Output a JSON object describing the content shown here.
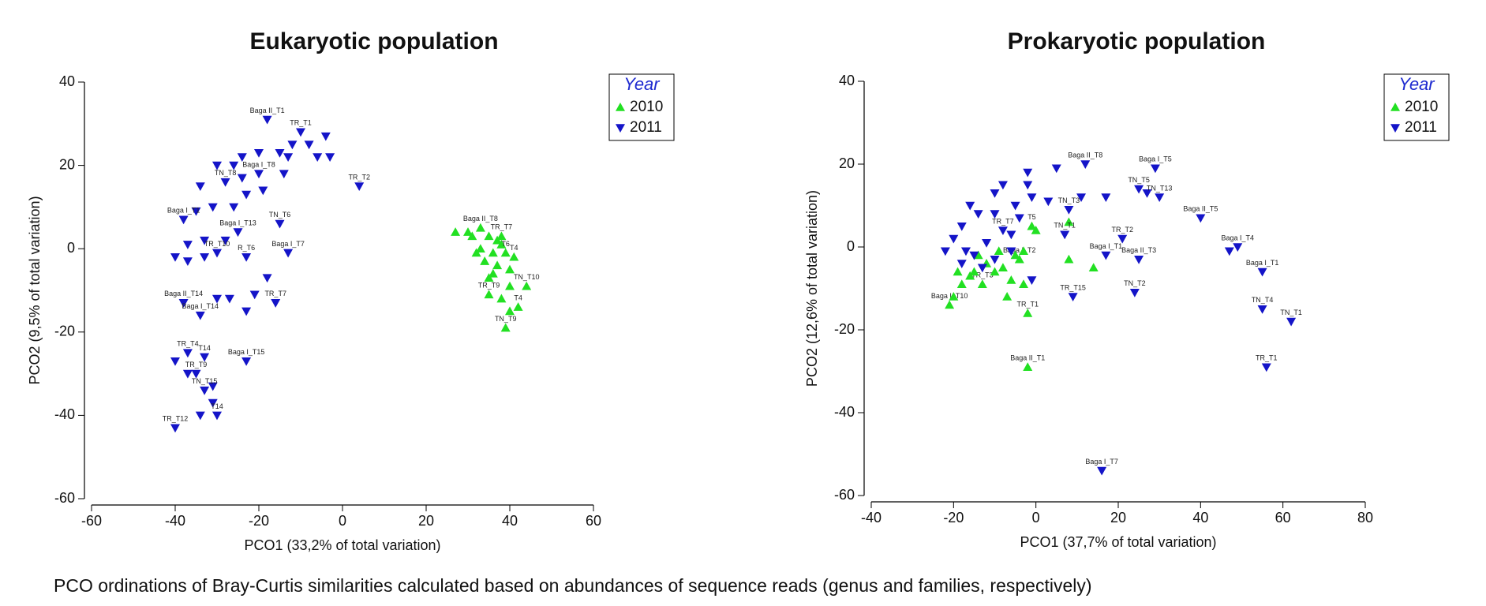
{
  "chart_data": [
    {
      "type": "scatter",
      "title": "Eukaryotic population",
      "x_label": "PCO1 (33,2% of total variation)",
      "y_label": "PCO2 (9,5% of total variation)",
      "legend_title": "Year",
      "xlim": [
        -60,
        60
      ],
      "xticks": [
        -60,
        -40,
        -20,
        0,
        20,
        40,
        60
      ],
      "ylim": [
        -60,
        40
      ],
      "yticks": [
        -60,
        -40,
        -20,
        0,
        20,
        40
      ],
      "series": [
        {
          "name": "2010",
          "color": "#22e022",
          "marker": "triangle-up",
          "x": [
            27,
            30,
            31,
            33,
            35,
            37,
            38,
            38,
            33,
            32,
            36,
            39,
            41,
            34,
            37,
            40,
            36,
            35,
            44,
            40,
            35,
            38,
            42,
            40,
            39
          ],
          "y": [
            4,
            4,
            3,
            5,
            3,
            2,
            1,
            3,
            0,
            -1,
            -1,
            -1,
            -2,
            -3,
            -4,
            -5,
            -6,
            -7,
            -9,
            -9,
            -11,
            -12,
            -14,
            -15,
            -19
          ],
          "labels": [
            null,
            null,
            null,
            "Baga II_T8",
            null,
            null,
            null,
            "TR_T7",
            null,
            null,
            null,
            "T6",
            "T4",
            null,
            null,
            null,
            null,
            null,
            "TN_T10",
            null,
            "TR_T9",
            null,
            "T4",
            null,
            "TN_T9"
          ]
        },
        {
          "name": "2011",
          "color": "#1414c8",
          "marker": "triangle-down",
          "x": [
            -18,
            -10,
            -4,
            -8,
            -12,
            -15,
            -20,
            -24,
            -26,
            -30,
            -13,
            -6,
            -3,
            -14,
            -20,
            -24,
            -28,
            -34,
            -19,
            -23,
            -26,
            -31,
            -35,
            -38,
            4,
            -15,
            -25,
            -28,
            -33,
            -37,
            -40,
            -37,
            -33,
            -30,
            -23,
            -13,
            -18,
            -21,
            -27,
            -30,
            -38,
            -34,
            -23,
            -16,
            -37,
            -33,
            -40,
            -23,
            -35,
            -37,
            -31,
            -33,
            -31,
            -34,
            -30,
            -40
          ],
          "y": [
            31,
            28,
            27,
            25,
            25,
            23,
            23,
            22,
            20,
            20,
            22,
            22,
            22,
            18,
            18,
            17,
            16,
            15,
            14,
            13,
            10,
            10,
            9,
            7,
            15,
            6,
            4,
            2,
            2,
            1,
            -2,
            -3,
            -2,
            -1,
            -2,
            -1,
            -7,
            -11,
            -12,
            -12,
            -13,
            -16,
            -15,
            -13,
            -25,
            -26,
            -27,
            -27,
            -30,
            -30,
            -33,
            -34,
            -37,
            -40,
            -40,
            -43
          ],
          "labels": [
            "Baga II_T1",
            "TR_T1",
            null,
            null,
            null,
            null,
            null,
            null,
            null,
            null,
            null,
            null,
            null,
            null,
            "Baga I_T8",
            null,
            "TN_T8",
            null,
            null,
            null,
            null,
            null,
            null,
            "Baga I_T1",
            "TR_T2",
            "TN_T6",
            "Baga I_T13",
            null,
            null,
            null,
            null,
            null,
            null,
            "TR_T10",
            "R_T6",
            "Baga I_T7",
            null,
            null,
            null,
            null,
            "Baga II_T14",
            "Baga I_T14",
            null,
            "TR_T7",
            "TR_T4",
            "T14",
            null,
            "Baga I_T15",
            "TR_T9",
            null,
            null,
            "TN_T15",
            null,
            null,
            "T14",
            "TR_T12"
          ]
        }
      ]
    },
    {
      "type": "scatter",
      "title": "Prokaryotic population",
      "x_label": "PCO1 (37,7% of total variation)",
      "y_label": "PCO2 (12,6% of total variation)",
      "legend_title": "Year",
      "xlim": [
        -40,
        80
      ],
      "xticks": [
        -40,
        -20,
        0,
        20,
        40,
        60,
        80
      ],
      "ylim": [
        -60,
        40
      ],
      "yticks": [
        -60,
        -40,
        -20,
        0,
        20,
        40
      ],
      "series": [
        {
          "name": "2010",
          "color": "#22e022",
          "marker": "triangle-up",
          "x": [
            -21,
            -20,
            -18,
            -16,
            -13,
            -10,
            -7,
            -6,
            -4,
            -3,
            -2,
            -2,
            8,
            14,
            8,
            0,
            -1,
            -8,
            -12,
            -15,
            -5,
            -9,
            -14,
            -19,
            -3
          ],
          "y": [
            -14,
            -12,
            -9,
            -7,
            -9,
            -6,
            -12,
            -8,
            -3,
            -1,
            -16,
            -29,
            -3,
            -5,
            6,
            4,
            5,
            -5,
            -4,
            -6,
            -2,
            -1,
            -2,
            -6,
            -9
          ],
          "labels": [
            "Baga I_T10",
            null,
            null,
            null,
            "TR_T3",
            null,
            null,
            null,
            "Baga I_T2",
            null,
            "TR_T1",
            "Baga II_T1",
            null,
            null,
            null,
            null,
            "T5",
            null,
            null,
            null,
            null,
            null,
            null,
            null,
            null
          ]
        },
        {
          "name": "2011",
          "color": "#1414c8",
          "marker": "triangle-down",
          "x": [
            29,
            17,
            25,
            27,
            30,
            40,
            47,
            49,
            55,
            55,
            62,
            56,
            16,
            24,
            25,
            17,
            21,
            7,
            9,
            -1,
            12,
            5,
            -2,
            -10,
            -8,
            -5,
            -1,
            3,
            11,
            8,
            -14,
            -18,
            -20,
            -17,
            -12,
            -8,
            -15,
            -10,
            -6,
            -18,
            -13,
            -4,
            -10,
            -16,
            -22,
            -6,
            -2
          ],
          "y": [
            19,
            12,
            14,
            13,
            12,
            7,
            -1,
            0,
            -6,
            -15,
            -18,
            -29,
            -54,
            -11,
            -3,
            -2,
            2,
            3,
            -12,
            -8,
            20,
            19,
            18,
            13,
            15,
            10,
            12,
            11,
            12,
            9,
            8,
            5,
            2,
            -1,
            1,
            4,
            -2,
            -3,
            -1,
            -4,
            -5,
            7,
            8,
            10,
            -1,
            3,
            15
          ],
          "labels": [
            "Baga I_T5",
            null,
            "TN_T5",
            null,
            "TN_T13",
            "Baga II_T5",
            null,
            "Baga I_T4",
            "Baga I_T1",
            "TN_T4",
            "TN_T1",
            "TR_T1",
            "Baga I_T7",
            "TN_T2",
            "Baga II_T3",
            "Baga I_T1",
            "TR_T2",
            "TN_T1",
            "TR_T15",
            null,
            "Baga II_T8",
            null,
            null,
            null,
            null,
            null,
            null,
            null,
            null,
            "TN_T3",
            null,
            null,
            null,
            null,
            null,
            "TR_T7",
            null,
            null,
            null,
            null,
            null,
            null,
            null,
            null,
            null,
            null,
            null
          ]
        }
      ]
    }
  ],
  "caption": "PCO ordinations of Bray-Curtis similarities calculated based on abundances of sequence reads (genus and families, respectively)"
}
